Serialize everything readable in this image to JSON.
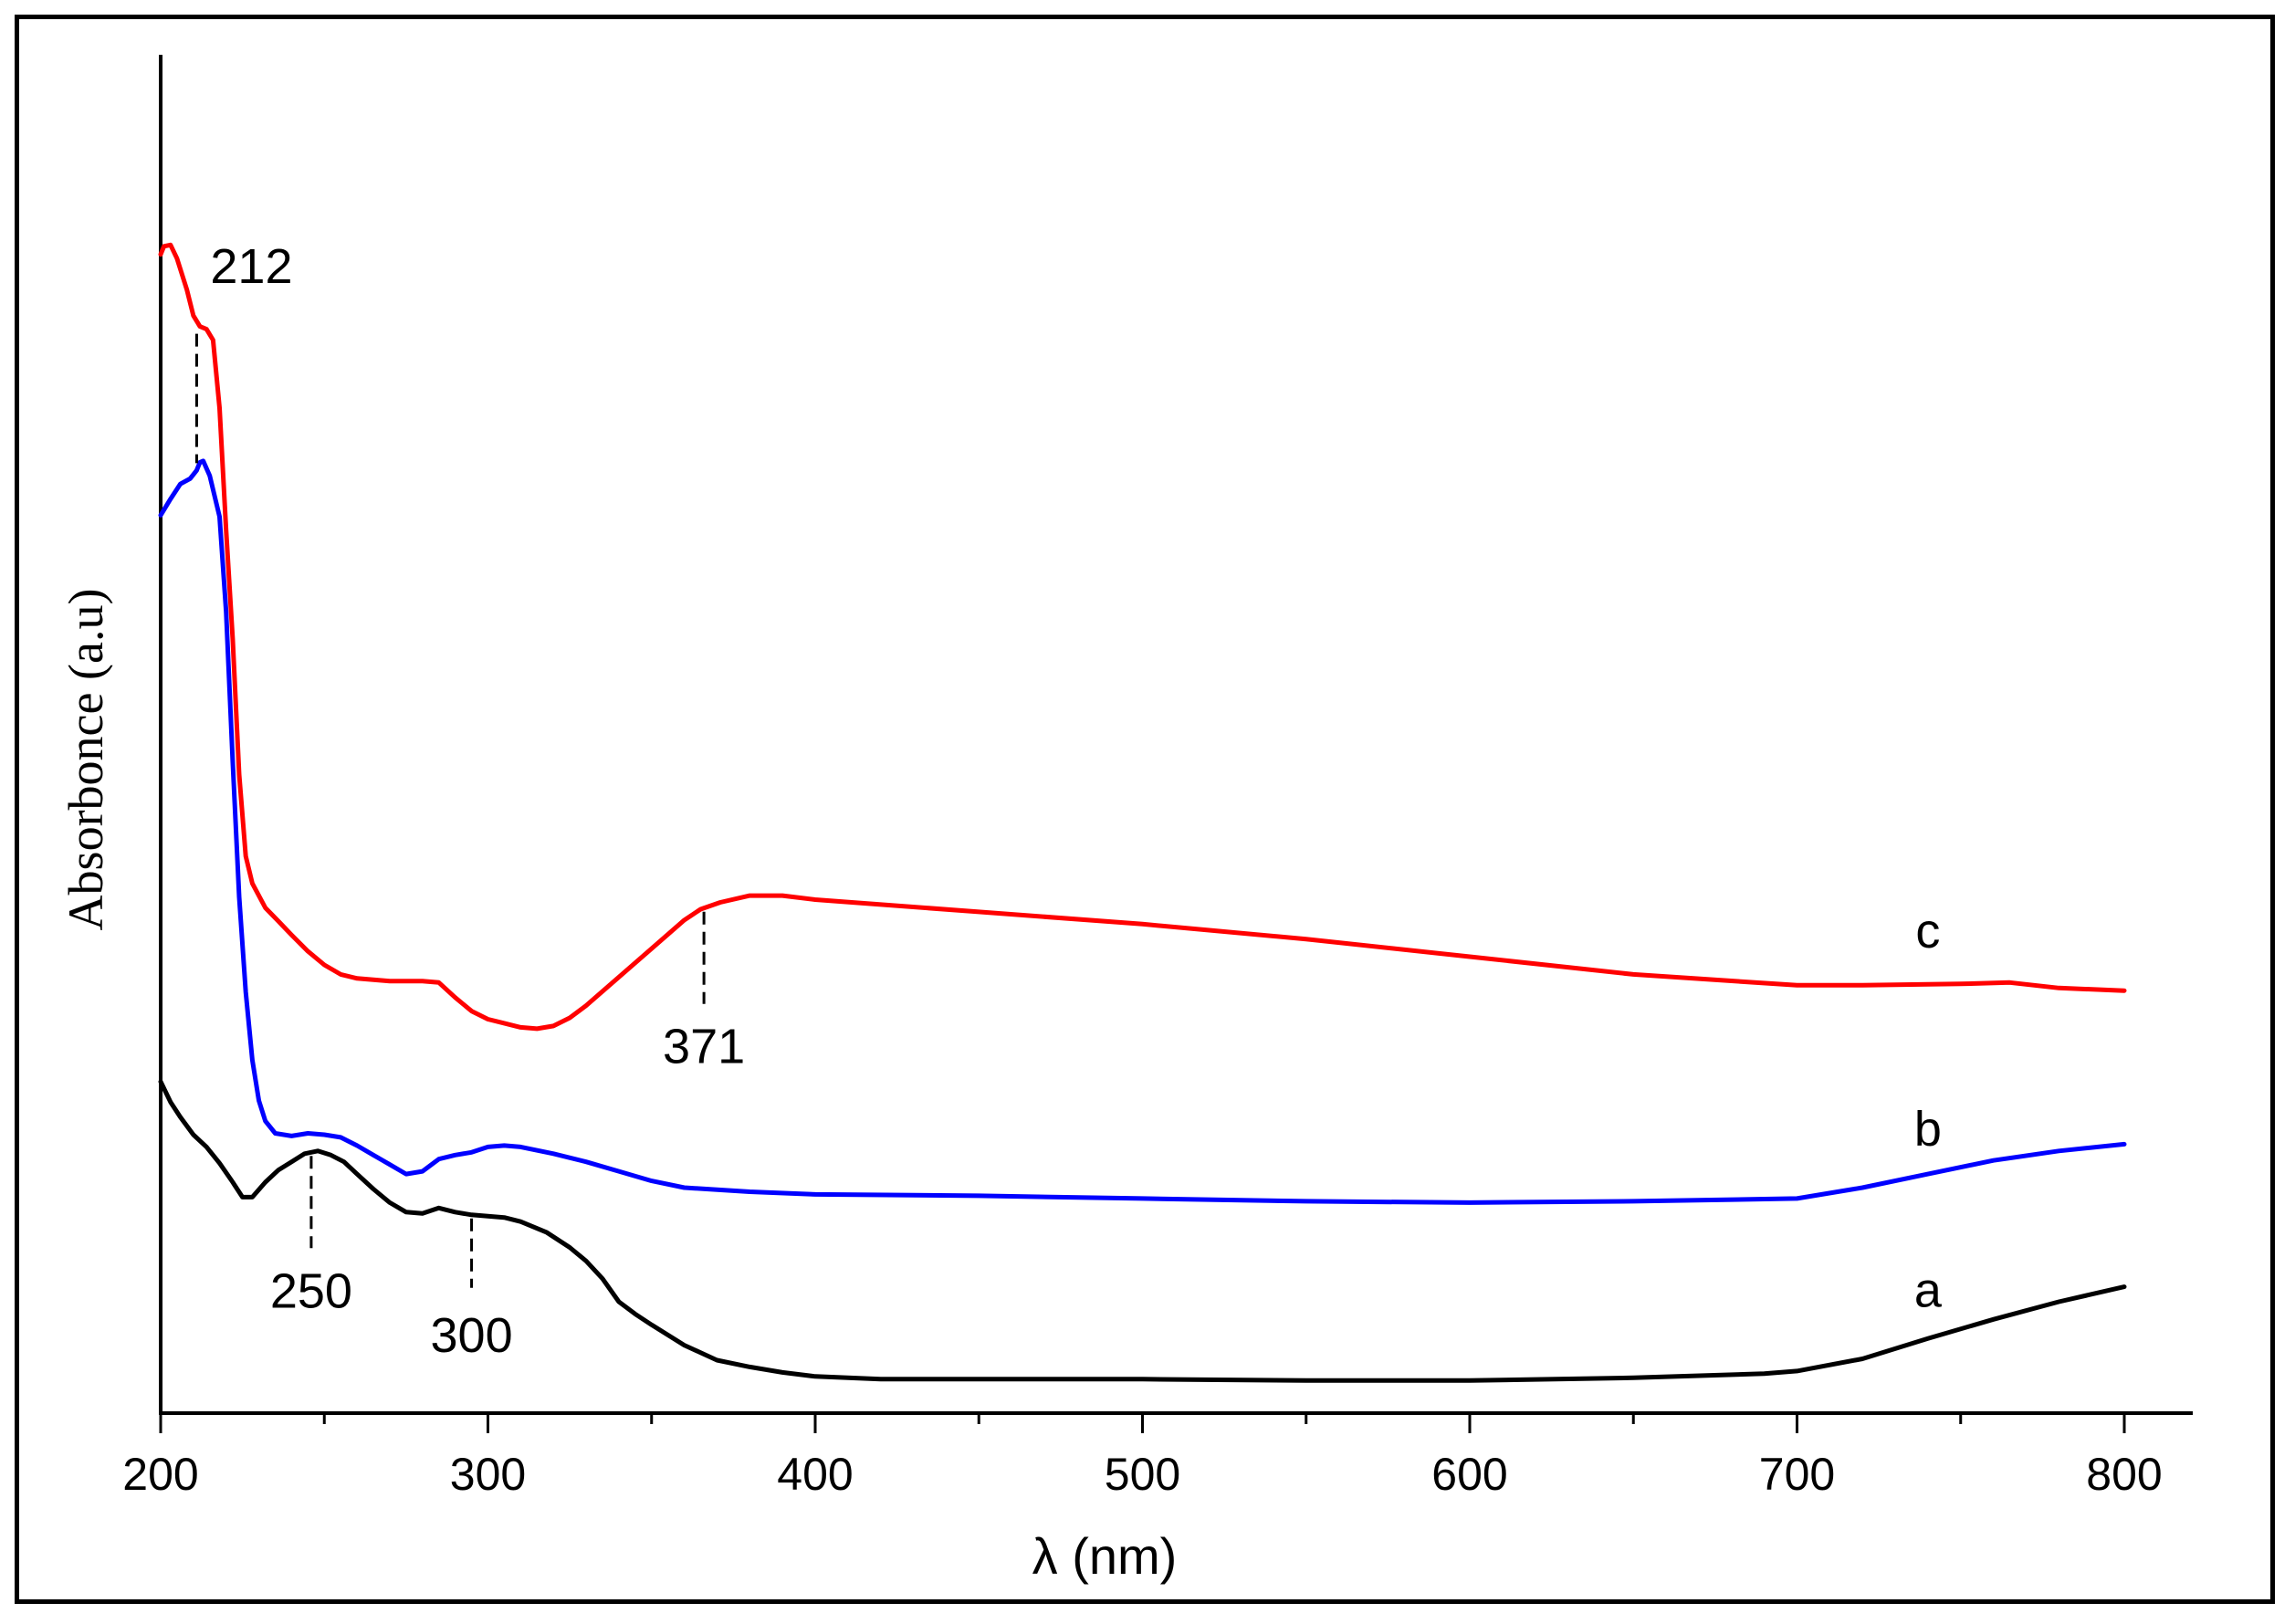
{
  "chart_data": {
    "type": "line",
    "title": "",
    "xlabel": "λ (nm)",
    "ylabel": "Absorbonce (a.u)",
    "xlim": [
      200,
      820
    ],
    "ylim": [
      0,
      1
    ],
    "x_ticks": [
      200,
      300,
      400,
      500,
      600,
      700,
      800
    ],
    "y_ticks_shown": false,
    "grid": false,
    "legend": "none",
    "series": [
      {
        "name": "a",
        "color": "#000000",
        "points": [
          [
            200,
            0.244
          ],
          [
            203,
            0.229
          ],
          [
            206,
            0.218
          ],
          [
            210,
            0.205
          ],
          [
            214,
            0.196
          ],
          [
            218,
            0.184
          ],
          [
            222,
            0.17
          ],
          [
            225,
            0.159
          ],
          [
            228,
            0.159
          ],
          [
            232,
            0.17
          ],
          [
            236,
            0.179
          ],
          [
            240,
            0.185
          ],
          [
            244,
            0.191
          ],
          [
            248,
            0.193
          ],
          [
            252,
            0.19
          ],
          [
            256,
            0.185
          ],
          [
            260,
            0.176
          ],
          [
            265,
            0.165
          ],
          [
            270,
            0.155
          ],
          [
            275,
            0.148
          ],
          [
            280,
            0.147
          ],
          [
            285,
            0.151
          ],
          [
            290,
            0.148
          ],
          [
            295,
            0.146
          ],
          [
            300,
            0.145
          ],
          [
            305,
            0.144
          ],
          [
            310,
            0.141
          ],
          [
            318,
            0.133
          ],
          [
            325,
            0.122
          ],
          [
            330,
            0.112
          ],
          [
            335,
            0.099
          ],
          [
            340,
            0.082
          ],
          [
            345,
            0.073
          ],
          [
            350,
            0.065
          ],
          [
            360,
            0.05
          ],
          [
            370,
            0.039
          ],
          [
            380,
            0.034
          ],
          [
            390,
            0.03
          ],
          [
            400,
            0.027
          ],
          [
            420,
            0.025
          ],
          [
            450,
            0.025
          ],
          [
            500,
            0.025
          ],
          [
            550,
            0.024
          ],
          [
            600,
            0.024
          ],
          [
            650,
            0.026
          ],
          [
            690,
            0.029
          ],
          [
            700,
            0.031
          ],
          [
            720,
            0.04
          ],
          [
            740,
            0.055
          ],
          [
            760,
            0.069
          ],
          [
            780,
            0.082
          ],
          [
            800,
            0.093
          ]
        ]
      },
      {
        "name": "b",
        "color": "#0000ff",
        "points": [
          [
            200,
            0.661
          ],
          [
            203,
            0.673
          ],
          [
            206,
            0.684
          ],
          [
            209,
            0.688
          ],
          [
            211,
            0.694
          ],
          [
            212,
            0.7
          ],
          [
            213,
            0.701
          ],
          [
            215,
            0.69
          ],
          [
            218,
            0.66
          ],
          [
            220,
            0.59
          ],
          [
            222,
            0.48
          ],
          [
            224,
            0.38
          ],
          [
            226,
            0.31
          ],
          [
            228,
            0.26
          ],
          [
            230,
            0.23
          ],
          [
            232,
            0.215
          ],
          [
            235,
            0.206
          ],
          [
            240,
            0.204
          ],
          [
            245,
            0.206
          ],
          [
            250,
            0.205
          ],
          [
            255,
            0.203
          ],
          [
            260,
            0.197
          ],
          [
            265,
            0.19
          ],
          [
            270,
            0.183
          ],
          [
            275,
            0.176
          ],
          [
            280,
            0.178
          ],
          [
            285,
            0.187
          ],
          [
            290,
            0.19
          ],
          [
            295,
            0.192
          ],
          [
            300,
            0.196
          ],
          [
            305,
            0.197
          ],
          [
            310,
            0.196
          ],
          [
            320,
            0.191
          ],
          [
            330,
            0.185
          ],
          [
            340,
            0.178
          ],
          [
            350,
            0.171
          ],
          [
            360,
            0.166
          ],
          [
            380,
            0.163
          ],
          [
            400,
            0.161
          ],
          [
            450,
            0.16
          ],
          [
            500,
            0.158
          ],
          [
            550,
            0.156
          ],
          [
            600,
            0.155
          ],
          [
            650,
            0.156
          ],
          [
            700,
            0.158
          ],
          [
            720,
            0.166
          ],
          [
            740,
            0.176
          ],
          [
            760,
            0.186
          ],
          [
            780,
            0.193
          ],
          [
            800,
            0.198
          ]
        ]
      },
      {
        "name": "c",
        "color": "#ff0000",
        "points": [
          [
            200,
            0.853
          ],
          [
            201,
            0.859
          ],
          [
            203,
            0.86
          ],
          [
            205,
            0.85
          ],
          [
            208,
            0.827
          ],
          [
            210,
            0.808
          ],
          [
            212,
            0.8
          ],
          [
            214,
            0.798
          ],
          [
            216,
            0.79
          ],
          [
            218,
            0.74
          ],
          [
            220,
            0.65
          ],
          [
            222,
            0.57
          ],
          [
            224,
            0.47
          ],
          [
            226,
            0.41
          ],
          [
            228,
            0.39
          ],
          [
            232,
            0.372
          ],
          [
            236,
            0.362
          ],
          [
            240,
            0.352
          ],
          [
            245,
            0.34
          ],
          [
            250,
            0.33
          ],
          [
            255,
            0.323
          ],
          [
            260,
            0.32
          ],
          [
            270,
            0.318
          ],
          [
            280,
            0.318
          ],
          [
            285,
            0.317
          ],
          [
            290,
            0.306
          ],
          [
            295,
            0.296
          ],
          [
            300,
            0.29
          ],
          [
            305,
            0.287
          ],
          [
            310,
            0.284
          ],
          [
            315,
            0.283
          ],
          [
            320,
            0.285
          ],
          [
            325,
            0.291
          ],
          [
            330,
            0.3
          ],
          [
            340,
            0.321
          ],
          [
            350,
            0.342
          ],
          [
            360,
            0.363
          ],
          [
            365,
            0.371
          ],
          [
            371,
            0.376
          ],
          [
            380,
            0.381
          ],
          [
            390,
            0.381
          ],
          [
            400,
            0.378
          ],
          [
            450,
            0.369
          ],
          [
            500,
            0.36
          ],
          [
            550,
            0.349
          ],
          [
            600,
            0.336
          ],
          [
            650,
            0.323
          ],
          [
            700,
            0.315
          ],
          [
            720,
            0.315
          ],
          [
            750,
            0.316
          ],
          [
            765,
            0.317
          ],
          [
            780,
            0.313
          ],
          [
            800,
            0.311
          ]
        ]
      }
    ],
    "series_labels": [
      "a",
      "b",
      "c"
    ],
    "annotations": [
      {
        "text": "212",
        "x": 211,
        "series": "b"
      },
      {
        "text": "250",
        "x": 246,
        "series": "a"
      },
      {
        "text": "300",
        "x": 295,
        "series": "a"
      },
      {
        "text": "371",
        "x": 366,
        "series": "c"
      }
    ]
  }
}
